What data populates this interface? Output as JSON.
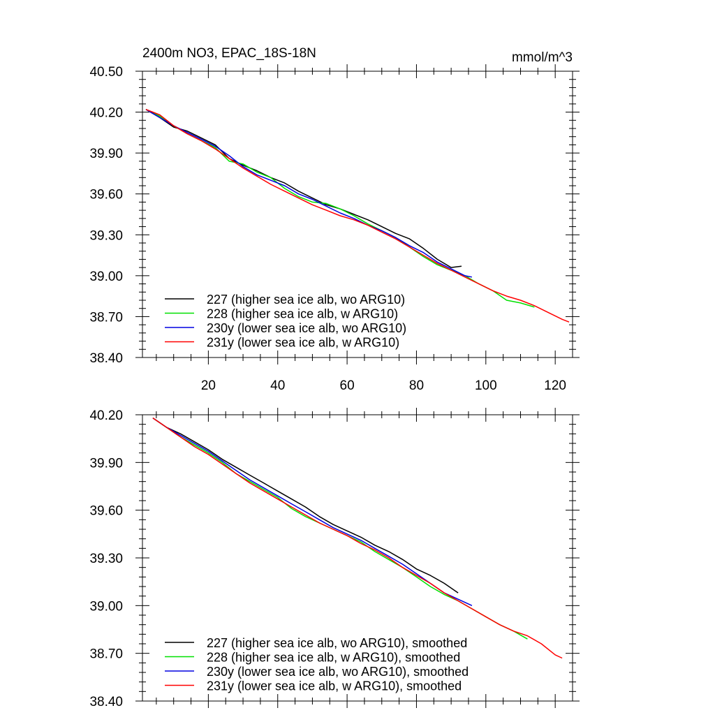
{
  "chart_data": [
    {
      "type": "line",
      "title": "2400m NO3, EPAC_18S-18N",
      "units": "mmol/m^3",
      "xlim": [
        1,
        125
      ],
      "ylim": [
        38.4,
        40.5
      ],
      "xticks": [
        20,
        40,
        60,
        80,
        100,
        120
      ],
      "xtick_labels": [
        "20",
        "40",
        "60",
        "80",
        "100",
        "120"
      ],
      "yticks": [
        38.4,
        38.7,
        39.0,
        39.3,
        39.6,
        39.9,
        40.2,
        40.5
      ],
      "ytick_labels": [
        "38.40",
        "38.70",
        "39.00",
        "39.30",
        "39.60",
        "39.90",
        "40.20",
        "40.50"
      ],
      "legend_position": "bottom-left",
      "series": [
        {
          "name": "227 (higher sea ice alb, wo ARG10)",
          "color": "#000000",
          "x": [
            2,
            6,
            10,
            14,
            18,
            22,
            26,
            30,
            34,
            38,
            42,
            46,
            50,
            54,
            58,
            62,
            66,
            70,
            74,
            78,
            82,
            86,
            90,
            93
          ],
          "y": [
            40.22,
            40.16,
            40.09,
            40.06,
            40.01,
            39.96,
            39.86,
            39.81,
            39.77,
            39.72,
            39.68,
            39.62,
            39.57,
            39.52,
            39.49,
            39.45,
            39.41,
            39.36,
            39.31,
            39.27,
            39.2,
            39.12,
            39.06,
            39.07
          ]
        },
        {
          "name": "228 (higher sea ice alb, w ARG10)",
          "color": "#00e000",
          "x": [
            2,
            6,
            10,
            14,
            18,
            22,
            26,
            30,
            34,
            38,
            42,
            46,
            50,
            54,
            58,
            62,
            66,
            70,
            74,
            78,
            82,
            86,
            90,
            94,
            98,
            102,
            106,
            110,
            114
          ],
          "y": [
            40.22,
            40.17,
            40.1,
            40.04,
            39.99,
            39.94,
            39.84,
            39.82,
            39.76,
            39.72,
            39.64,
            39.58,
            39.54,
            39.53,
            39.49,
            39.44,
            39.38,
            39.33,
            39.28,
            39.21,
            39.14,
            39.08,
            39.04,
            39.0,
            38.94,
            38.89,
            38.82,
            38.8,
            38.77
          ]
        },
        {
          "name": "230y (lower sea ice alb, wo ARG10)",
          "color": "#0000e0",
          "x": [
            2,
            6,
            10,
            14,
            18,
            22,
            26,
            30,
            34,
            38,
            42,
            46,
            50,
            54,
            58,
            62,
            66,
            70,
            74,
            78,
            82,
            86,
            90,
            94,
            96
          ],
          "y": [
            40.22,
            40.16,
            40.1,
            40.05,
            40.0,
            39.95,
            39.88,
            39.8,
            39.74,
            39.7,
            39.66,
            39.6,
            39.56,
            39.51,
            39.46,
            39.42,
            39.37,
            39.33,
            39.28,
            39.22,
            39.17,
            39.1,
            39.05,
            39.0,
            38.99
          ]
        },
        {
          "name": "231y (lower sea ice alb, w ARG10)",
          "color": "#ff0000",
          "x": [
            2,
            6,
            10,
            14,
            18,
            22,
            26,
            30,
            34,
            38,
            42,
            46,
            50,
            54,
            58,
            62,
            66,
            70,
            74,
            78,
            82,
            86,
            90,
            94,
            98,
            102,
            106,
            110,
            114,
            118,
            122,
            124
          ],
          "y": [
            40.22,
            40.18,
            40.1,
            40.04,
            39.99,
            39.93,
            39.86,
            39.79,
            39.73,
            39.67,
            39.62,
            39.57,
            39.52,
            39.48,
            39.44,
            39.41,
            39.37,
            39.32,
            39.27,
            39.21,
            39.15,
            39.09,
            39.04,
            38.99,
            38.94,
            38.89,
            38.85,
            38.82,
            38.78,
            38.73,
            38.68,
            38.66
          ]
        }
      ]
    },
    {
      "type": "line",
      "xlim": [
        1,
        125
      ],
      "ylim": [
        38.4,
        40.2
      ],
      "xticks": [
        20,
        40,
        60,
        80,
        100,
        120
      ],
      "yticks": [
        38.4,
        38.7,
        39.0,
        39.3,
        39.6,
        39.9,
        40.2
      ],
      "ytick_labels": [
        "38.40",
        "38.70",
        "39.00",
        "39.30",
        "39.60",
        "39.90",
        "40.20"
      ],
      "legend_position": "bottom-left",
      "series": [
        {
          "name": "227 (higher sea ice alb, wo ARG10), smoothed",
          "color": "#000000",
          "x": [
            4,
            8,
            12,
            16,
            20,
            24,
            28,
            32,
            36,
            40,
            44,
            48,
            52,
            56,
            60,
            64,
            68,
            72,
            76,
            80,
            84,
            88,
            92
          ],
          "y": [
            40.18,
            40.12,
            40.08,
            40.03,
            39.98,
            39.92,
            39.87,
            39.82,
            39.77,
            39.72,
            39.67,
            39.62,
            39.56,
            39.51,
            39.47,
            39.43,
            39.38,
            39.34,
            39.29,
            39.23,
            39.19,
            39.14,
            39.08
          ]
        },
        {
          "name": "228 (higher sea ice alb, w ARG10), smoothed",
          "color": "#00e000",
          "x": [
            4,
            8,
            12,
            16,
            20,
            24,
            28,
            32,
            36,
            40,
            44,
            48,
            52,
            56,
            60,
            64,
            68,
            72,
            76,
            80,
            84,
            88,
            92,
            96,
            100,
            104,
            108,
            112
          ],
          "y": [
            40.18,
            40.12,
            40.06,
            40.01,
            39.96,
            39.9,
            39.83,
            39.78,
            39.73,
            39.68,
            39.61,
            39.56,
            39.52,
            39.48,
            39.44,
            39.4,
            39.34,
            39.29,
            39.24,
            39.18,
            39.12,
            39.07,
            39.03,
            38.98,
            38.93,
            38.88,
            38.84,
            38.79
          ]
        },
        {
          "name": "230y (lower sea ice alb, wo ARG10), smoothed",
          "color": "#0000e0",
          "x": [
            4,
            8,
            12,
            16,
            20,
            24,
            28,
            32,
            36,
            40,
            44,
            48,
            52,
            56,
            60,
            64,
            68,
            72,
            76,
            80,
            84,
            88,
            92,
            96
          ],
          "y": [
            40.18,
            40.12,
            40.07,
            40.02,
            39.97,
            39.91,
            39.85,
            39.79,
            39.74,
            39.69,
            39.64,
            39.59,
            39.54,
            39.49,
            39.45,
            39.41,
            39.36,
            39.31,
            39.26,
            39.2,
            39.14,
            39.08,
            39.04,
            39.0
          ]
        },
        {
          "name": "231y (lower sea ice alb, w ARG10), smoothed",
          "color": "#ff0000",
          "x": [
            4,
            8,
            12,
            16,
            20,
            24,
            28,
            32,
            36,
            40,
            44,
            48,
            52,
            56,
            60,
            64,
            68,
            72,
            76,
            80,
            84,
            88,
            92,
            96,
            100,
            104,
            108,
            112,
            116,
            120,
            122
          ],
          "y": [
            40.18,
            40.12,
            40.06,
            40.0,
            39.95,
            39.89,
            39.83,
            39.77,
            39.72,
            39.67,
            39.62,
            39.57,
            39.52,
            39.48,
            39.44,
            39.39,
            39.35,
            39.3,
            39.24,
            39.19,
            39.14,
            39.08,
            39.03,
            38.98,
            38.93,
            38.88,
            38.84,
            38.81,
            38.76,
            38.69,
            38.67
          ]
        }
      ]
    }
  ]
}
